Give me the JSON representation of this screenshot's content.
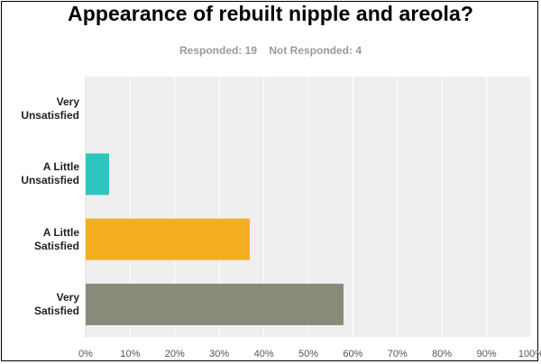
{
  "chart_data": {
    "type": "bar",
    "orientation": "horizontal",
    "title": "Appearance of rebuilt nipple and areola?",
    "responded_label": "Responded: 19",
    "not_responded_label": "Not Responded: 4",
    "categories": [
      "Very Unsatisfied",
      "A Little Unsatisfied",
      "A Little Satisfied",
      "Very Satisfied"
    ],
    "category_lines": [
      [
        "Very",
        "Unsatisfied"
      ],
      [
        "A Little",
        "Unsatisfied"
      ],
      [
        "A Little",
        "Satisfied"
      ],
      [
        "Very",
        "Satisfied"
      ]
    ],
    "values": [
      0,
      5.26,
      36.84,
      57.89
    ],
    "colors": [
      "#2ec4c0",
      "#2ec4c0",
      "#f5ae22",
      "#8a8a7b"
    ],
    "xlim": [
      0,
      100
    ],
    "xticks": [
      "0%",
      "10%",
      "20%",
      "30%",
      "40%",
      "50%",
      "60%",
      "70%",
      "80%",
      "90%",
      "100%"
    ],
    "grid": true,
    "xlabel": "",
    "ylabel": ""
  }
}
